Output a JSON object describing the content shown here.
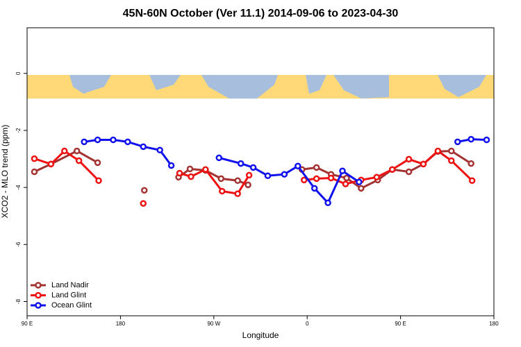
{
  "chart_data": {
    "type": "line",
    "title": "45N-60N October (Ver 11.1)   2014-09-06 to 2023-04-30",
    "x_label": "Longitude",
    "y_label": "XCO2 - MLO trend (ppm)",
    "xlim": [
      90,
      540
    ],
    "ylim": [
      -8.5,
      1.6
    ],
    "xticks": [
      {
        "value": 90,
        "label": "90 E"
      },
      180,
      {
        "value": 270,
        "label": "90 W"
      },
      {
        "value": 360,
        "label": "0"
      },
      {
        "value": 450,
        "label": "90 E"
      },
      {
        "value": 540,
        "label": "180"
      }
    ],
    "yticks": [
      0,
      -2,
      -4,
      -6,
      -8
    ],
    "legend": "bottomleft",
    "series": [
      {
        "name": "Land Nadir",
        "color": "#a33232",
        "x": [
          97,
          113,
          138,
          158,
          null,
          203,
          null,
          236,
          247,
          262,
          277,
          293,
          303,
          null,
          355,
          369,
          383,
          398,
          412,
          428,
          442,
          458,
          472,
          486,
          499,
          518
        ],
        "values": [
          -3.45,
          -3.18,
          -2.72,
          -3.13,
          null,
          -4.1,
          null,
          -3.64,
          -3.35,
          -3.4,
          -3.69,
          -3.76,
          -3.91,
          null,
          -3.37,
          -3.3,
          -3.54,
          -3.67,
          -4.03,
          -3.74,
          -3.37,
          -3.45,
          -3.18,
          -2.74,
          -2.72,
          -3.16
        ]
      },
      {
        "name": "Land Glint",
        "color": "#ee1111",
        "x": [
          97,
          113,
          126,
          140,
          159,
          null,
          202,
          null,
          237,
          248,
          262,
          278,
          293,
          304,
          null,
          357,
          369,
          383,
          397,
          412,
          427,
          442,
          458,
          472,
          486,
          499,
          519
        ],
        "values": [
          -2.99,
          -3.18,
          -2.72,
          -3.06,
          -3.76,
          null,
          -4.56,
          null,
          -3.5,
          -3.62,
          -3.37,
          -4.13,
          -4.22,
          -3.57,
          null,
          -3.74,
          -3.69,
          -3.67,
          -3.88,
          -3.74,
          -3.64,
          -3.37,
          -3.01,
          -3.18,
          -2.72,
          -3.06,
          -3.76
        ]
      },
      {
        "name": "Ocean Glint",
        "color": "#1111ee",
        "x": [
          145,
          158,
          173,
          187,
          202,
          218,
          229,
          null,
          275,
          296,
          308,
          322,
          338,
          351,
          367,
          380,
          394,
          410,
          null,
          505,
          518,
          533
        ],
        "values": [
          -2.4,
          -2.33,
          -2.33,
          -2.4,
          -2.57,
          -2.69,
          -3.23,
          null,
          -2.96,
          -3.16,
          -3.3,
          -3.59,
          -3.54,
          -3.25,
          -4.03,
          -4.54,
          -3.42,
          -3.81,
          null,
          -2.4,
          -2.31,
          -2.33
        ]
      }
    ]
  }
}
